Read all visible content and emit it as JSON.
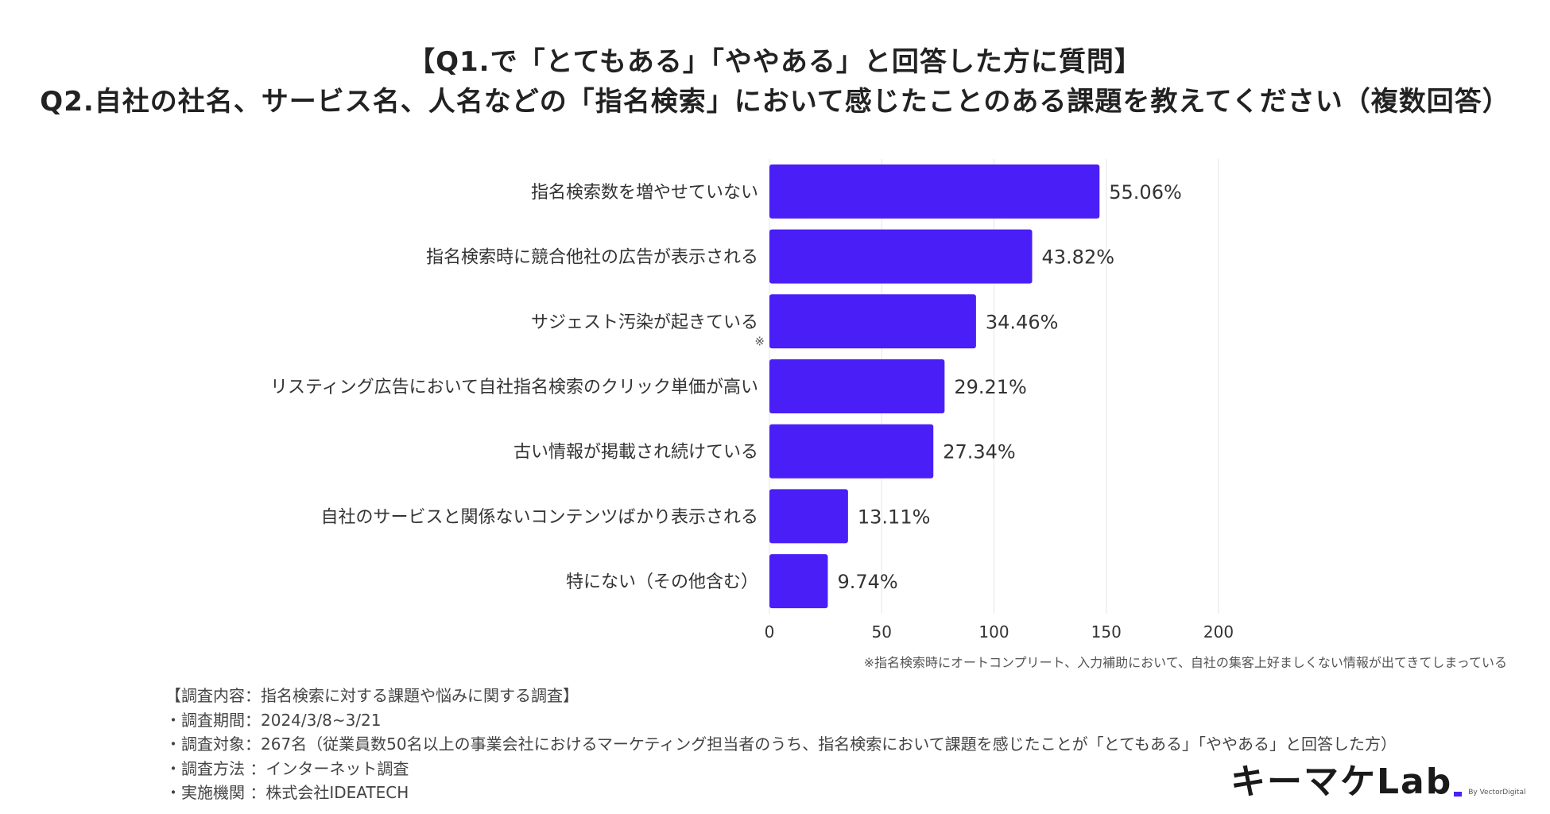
{
  "title_line1": "【Q1.で「とてもある」「ややある」と回答した方に質問】",
  "title_line2": "Q2.自社の社名、サービス名、人名などの「指名検索」において感じたことのある課題を教えてください（複数回答）",
  "chart_data": {
    "type": "bar",
    "orientation": "horizontal",
    "categories": [
      "指名検索数を増やせていない",
      "指名検索時に競合他社の広告が表示される",
      "サジェスト汚染が起きている",
      "リスティング広告において自社指名検索のクリック単価が高い",
      "古い情報が掲載され続けている",
      "自社のサービスと関係ないコンテンツばかり表示される",
      "特にない（その他含む）"
    ],
    "values": [
      147,
      117,
      92,
      78,
      73,
      35,
      26
    ],
    "value_labels": [
      "55.06%",
      "43.82%",
      "34.46%",
      "29.21%",
      "27.34%",
      "13.11%",
      "9.74%"
    ],
    "xlim": [
      0,
      200
    ],
    "xticks": [
      "0",
      "50",
      "100",
      "150",
      "200"
    ],
    "xtick_values": [
      0,
      50,
      100,
      150,
      200
    ],
    "grid": true,
    "bar_color": "#4a1ff7",
    "category_note": {
      "index": 2,
      "mark": "※"
    }
  },
  "footnote": "※指名検索時にオートコンプリート、入力補助において、自社の集客上好ましくない情報が出てきてしまっている",
  "survey": {
    "content": "【調査内容：指名検索に対する課題や悩みに関する調査】",
    "period": "・調査期間：2024/3/8~3/21",
    "target": "・調査対象：267名（従業員数50名以上の事業会社におけるマーケティング担当者のうち、指名検索において課題を感じたことが「とてもある」「ややある」と回答した方）",
    "method": "・調査方法 ：インターネット調査",
    "organization": "・実施機関 ：株式会社IDEATECH"
  },
  "logo": {
    "text": "キーマケLab",
    "byline": "By VectorDigital",
    "accent_color": "#4a1ff7"
  }
}
